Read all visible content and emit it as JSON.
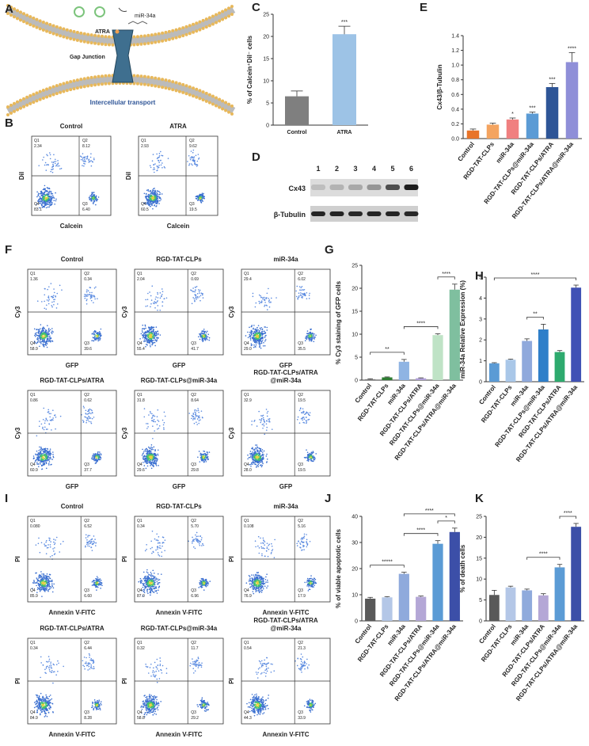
{
  "panel_labels": [
    "A",
    "B",
    "C",
    "D",
    "E",
    "F",
    "G",
    "H",
    "I",
    "J",
    "K"
  ],
  "schematic": {
    "mirna": "miR-34a",
    "atra": "ATRA",
    "gap_junction": "Gap Junction",
    "transport": "Intercellular transport"
  },
  "western": {
    "lanes": [
      "1",
      "2",
      "3",
      "4",
      "5",
      "6"
    ],
    "rows": [
      "Cx43",
      "β-Tubulin"
    ]
  },
  "quadrant_names": [
    "Q1",
    "Q2",
    "Q3",
    "Q4"
  ],
  "flow": {
    "B": [
      {
        "title": [
          "Control"
        ],
        "xlabel": "Calcein",
        "ylabel": "DiI",
        "q1": "2.34",
        "q2": "8.12",
        "q3": "6.40",
        "q4": "83.1"
      },
      {
        "title": [
          "ATRA"
        ],
        "xlabel": "Calcein",
        "ylabel": "DiI",
        "q1": "2.93",
        "q2": "9.62",
        "q3": "19.5",
        "q4": "60.5"
      }
    ],
    "F": [
      {
        "title": [
          "Control"
        ],
        "xlabel": "GFP",
        "ylabel": "Cy3",
        "q1": "1.36",
        "q2": "0.34",
        "q3": "39.6",
        "q4": "58.9"
      },
      {
        "title": [
          "RGD-TAT-CLPs"
        ],
        "xlabel": "GFP",
        "ylabel": "Cy3",
        "q1": "2.04",
        "q2": "0.69",
        "q3": "41.7",
        "q4": "55.4"
      },
      {
        "title": [
          "miR-34a"
        ],
        "xlabel": "GFP",
        "ylabel": "Cy3",
        "q1": "29.4",
        "q2": "6.02",
        "q3": "35.5",
        "q4": "29.0"
      },
      {
        "title": [
          "RGD-TAT-CLPs/ATRA"
        ],
        "xlabel": "GFP",
        "ylabel": "Cy3",
        "q1": "0.86",
        "q2": "0.62",
        "q3": "37.7",
        "q4": "60.9"
      },
      {
        "title": [
          "RGD-TAT-CLPs@miR-34a"
        ],
        "xlabel": "GFP",
        "ylabel": "Cy3",
        "q1": "31.8",
        "q2": "8.64",
        "q3": "29.8",
        "q4": "29.6"
      },
      {
        "title": [
          "RGD-TAT-CLPs/ATRA",
          "@miR-34a"
        ],
        "xlabel": "GFP",
        "ylabel": "Cy3",
        "q1": "32.9",
        "q2": "19.5",
        "q3": "19.5",
        "q4": "28.0"
      }
    ],
    "I": [
      {
        "title": [
          "Control"
        ],
        "xlabel": "Annexin V-FITC",
        "ylabel": "PI",
        "q1": "0.080",
        "q2": "6.52",
        "q3": "6.60",
        "q4": "85.9"
      },
      {
        "title": [
          "RGD-TAT-CLPs"
        ],
        "xlabel": "Annexin V-FITC",
        "ylabel": "PI",
        "q1": "0.34",
        "q2": "5.70",
        "q3": "6.96",
        "q4": "87.0"
      },
      {
        "title": [
          "miR-34a"
        ],
        "xlabel": "Annexin V-FITC",
        "ylabel": "PI",
        "q1": "0.108",
        "q2": "5.16",
        "q3": "17.9",
        "q4": "76.9"
      },
      {
        "title": [
          "RGD-TAT-CLPs/ATRA"
        ],
        "xlabel": "Annexin V-FITC",
        "ylabel": "PI",
        "q1": "0.34",
        "q2": "6.44",
        "q3": "8.28",
        "q4": "84.9"
      },
      {
        "title": [
          "RGD-TAT-CLPs@miR-34a"
        ],
        "xlabel": "Annexin V-FITC",
        "ylabel": "PI",
        "q1": "0.32",
        "q2": "11.7",
        "q3": "29.2",
        "q4": "58.8"
      },
      {
        "title": [
          "RGD-TAT-CLPs/ATRA",
          "@miR-34a"
        ],
        "xlabel": "Annexin V-FITC",
        "ylabel": "PI",
        "q1": "0.54",
        "q2": "21.3",
        "q3": "33.9",
        "q4": "44.3"
      }
    ]
  },
  "chart_data": [
    {
      "type": "bar",
      "ylabel": "% of Calcein⁺DiI⁻ cells",
      "categories": [
        "Control",
        "ATRA"
      ],
      "values": [
        6.5,
        20.5
      ],
      "errors": [
        1.2,
        1.8
      ],
      "colors": [
        "#7f7f7f",
        "#9dc3e6"
      ],
      "ylim": [
        0,
        25
      ],
      "yticks": [
        0,
        5,
        10,
        15,
        20,
        25
      ],
      "significance": [
        null,
        "***"
      ]
    },
    {
      "type": "bar",
      "ylabel": "Cx43/β-Tubulin",
      "categories": [
        "Control",
        "RGD-TAT-CLPs",
        "miR-34a",
        "RGD-TAT-CLPs@miR-34a",
        "RGD-TAT-CLPs/ATRA",
        "RGD-TAT-CLPs/ATRA@miR-34a"
      ],
      "values": [
        0.11,
        0.19,
        0.26,
        0.34,
        0.7,
        1.04
      ],
      "errors": [
        0.02,
        0.02,
        0.02,
        0.02,
        0.05,
        0.13
      ],
      "colors": [
        "#e8742a",
        "#f4a460",
        "#f08080",
        "#5b9bd5",
        "#2e5597",
        "#8f8fd8"
      ],
      "ylim": [
        0,
        1.4
      ],
      "yticks": [
        {
          "value": 0,
          "label": "0.0"
        },
        0.2,
        0.4,
        0.6,
        0.8,
        {
          "value": 1,
          "label": "1.0"
        },
        1.2,
        1.4
      ],
      "significance": [
        null,
        null,
        "*",
        "***",
        "***",
        "****"
      ]
    },
    {
      "type": "bar",
      "ylabel": "% Cy3 staining of GFP cells",
      "categories": [
        "Control",
        "RGD-TAT-CLPs",
        "miR-34a",
        "RGD-TAT-CLPs/ATRA",
        "RGD-TAT-CLPs@miR-34a",
        "RGD-TAT-CLPs/ATRA@miR-34a"
      ],
      "values": [
        0.2,
        0.6,
        4.0,
        0.4,
        9.8,
        19.7
      ],
      "errors": [
        0.1,
        0.1,
        0.5,
        0.1,
        0.3,
        1.2
      ],
      "colors": [
        "#7f7f7f",
        "#2e7d32",
        "#8fb4e3",
        "#b0a0d8",
        "#bfe3c6",
        "#7fbf9f"
      ],
      "ylim": [
        0,
        25
      ],
      "yticks": [
        0,
        5,
        10,
        15,
        20,
        25
      ],
      "brackets": [
        {
          "from": 0,
          "to": 2,
          "text": "**"
        },
        {
          "from": 2,
          "to": 4,
          "text": "****"
        },
        {
          "from": 4,
          "to": 5,
          "text": "****"
        }
      ]
    },
    {
      "type": "bar",
      "ylabel": "miR-34a Relative Expression (%)",
      "categories": [
        "Control",
        "RGD-TAT-CLPs",
        "miR-34a",
        "RGD-TAT-CLPs@miR-34a",
        "RGD-TAT-CLPs/ATRA",
        "RGD-TAT-CLPs/ATRA@miR-34a"
      ],
      "values": [
        0.88,
        1.05,
        1.95,
        2.5,
        1.42,
        4.5
      ],
      "errors": [
        0.03,
        0.03,
        0.1,
        0.25,
        0.07,
        0.12
      ],
      "colors": [
        "#5b9bd5",
        "#a9c7e8",
        "#8fa9dc",
        "#2f7fc9",
        "#2eaa6e",
        "#3f51b5"
      ],
      "ylim": [
        0,
        5
      ],
      "yticks": [
        0,
        1,
        2,
        3,
        4,
        5
      ],
      "brackets": [
        {
          "from": 2,
          "to": 3,
          "text": "**"
        },
        {
          "from": 0,
          "to": 5,
          "text": "****"
        }
      ]
    },
    {
      "type": "bar",
      "ylabel": "% of viable apoptotic cells",
      "categories": [
        "Control",
        "RGD-TAT-CLPs",
        "miR-34a",
        "RGD-TAT-CLPs/ATRA",
        "RGD-TAT-CLPs@miR-34a",
        "RGD-TAT-CLPs/ATRA@miR-34a"
      ],
      "values": [
        8.5,
        9.0,
        18.0,
        9.2,
        29.5,
        34.0
      ],
      "errors": [
        0.5,
        0.3,
        0.6,
        0.3,
        1.2,
        1.5
      ],
      "colors": [
        "#595959",
        "#b4c7e7",
        "#8faadc",
        "#b4a7d6",
        "#5b9bd5",
        "#3c4fa8"
      ],
      "ylim": [
        0,
        40
      ],
      "yticks": [
        0,
        10,
        20,
        30,
        40
      ],
      "brackets": [
        {
          "from": 0,
          "to": 2,
          "text": "*****"
        },
        {
          "from": 2,
          "to": 4,
          "text": "****"
        },
        {
          "from": 4,
          "to": 5,
          "text": "*"
        },
        {
          "from": 2,
          "to": 5,
          "text": "****"
        }
      ]
    },
    {
      "type": "bar",
      "ylabel": "% of death cells",
      "categories": [
        "Control",
        "RGD-TAT-CLPs",
        "miR-34a",
        "RGD-TAT-CLPs/ATRA",
        "RGD-TAT-CLPs@miR-34a",
        "RGD-TAT-CLPs/ATRA@miR-34a"
      ],
      "values": [
        6.2,
        8.0,
        7.3,
        6.1,
        12.8,
        22.5
      ],
      "errors": [
        1.1,
        0.3,
        0.3,
        0.4,
        0.7,
        0.8
      ],
      "colors": [
        "#595959",
        "#b4c7e7",
        "#8faadc",
        "#b4a7d6",
        "#5b9bd5",
        "#3c4fa8"
      ],
      "ylim": [
        0,
        25
      ],
      "yticks": [
        0,
        5,
        10,
        15,
        20,
        25
      ],
      "brackets": [
        {
          "from": 2,
          "to": 4,
          "text": "****"
        },
        {
          "from": 4,
          "to": 5,
          "text": "****"
        }
      ]
    }
  ]
}
